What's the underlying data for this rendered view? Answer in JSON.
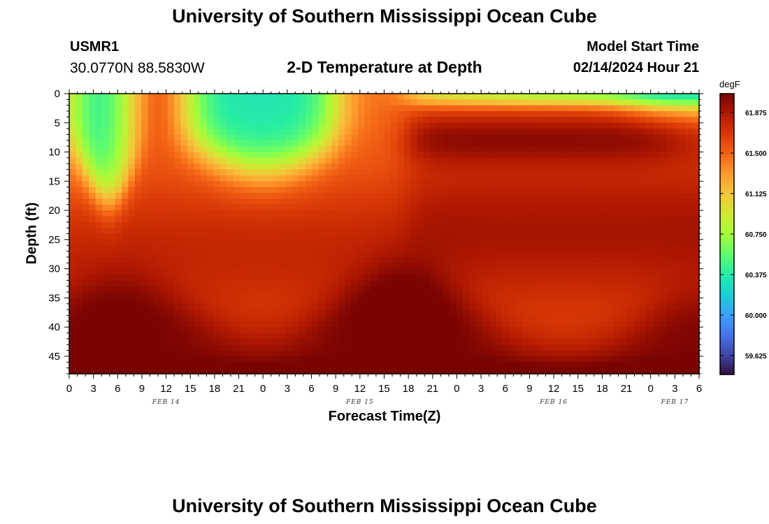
{
  "header": {
    "title": "University of Southern Mississippi Ocean Cube",
    "station_id": "USMR1",
    "station_coords": "30.0770N  88.5830W",
    "plot_title": "2-D Temperature at Depth",
    "model_label": "Model Start Time",
    "model_time": "02/14/2024 Hour 21"
  },
  "footer": {
    "title": "University of Southern Mississippi Ocean Cube"
  },
  "chart_data": {
    "type": "heatmap",
    "title": "2-D Temperature at Depth",
    "xlabel": "Forecast Time(Z)",
    "ylabel": "Depth (ft)",
    "x_start": "02/14/2024 Hour 0",
    "x_hours_range": [
      0,
      78
    ],
    "x_tick_labels": [
      "0",
      "3",
      "6",
      "9",
      "12",
      "15",
      "18",
      "21",
      "0",
      "3",
      "6",
      "9",
      "12",
      "15",
      "18",
      "21",
      "0",
      "3",
      "6",
      "9",
      "12",
      "15",
      "18",
      "21",
      "0",
      "3",
      "6"
    ],
    "date_labels": [
      {
        "text": "FEB 14",
        "hour": 12
      },
      {
        "text": "FEB 15",
        "hour": 36
      },
      {
        "text": "FEB 16",
        "hour": 60
      },
      {
        "text": "FEB 17",
        "hour": 75
      }
    ],
    "ylim": [
      0,
      48
    ],
    "y_ticks": [
      0,
      5,
      10,
      15,
      20,
      25,
      30,
      35,
      40,
      45
    ],
    "colorbar": {
      "unit": "degF",
      "ticks": [
        59.625,
        60.0,
        60.375,
        60.75,
        61.125,
        61.5,
        61.875
      ],
      "tick_labels": [
        "59.625",
        "60.000",
        "60.375",
        "60.750",
        "61.125",
        "61.500",
        "61.875"
      ],
      "range": [
        59.45,
        62.05
      ]
    },
    "colormap": [
      "#30123b",
      "#4145ab",
      "#4675ed",
      "#39a2fc",
      "#1bcfd4",
      "#24eca6",
      "#61fc6c",
      "#a4fc3b",
      "#d1e834",
      "#f3c63a",
      "#fe9b2d",
      "#f36315",
      "#d93806",
      "#b11901",
      "#7a0402"
    ],
    "colors": {
      "frame": "#000000",
      "background": "#ffffff"
    }
  }
}
